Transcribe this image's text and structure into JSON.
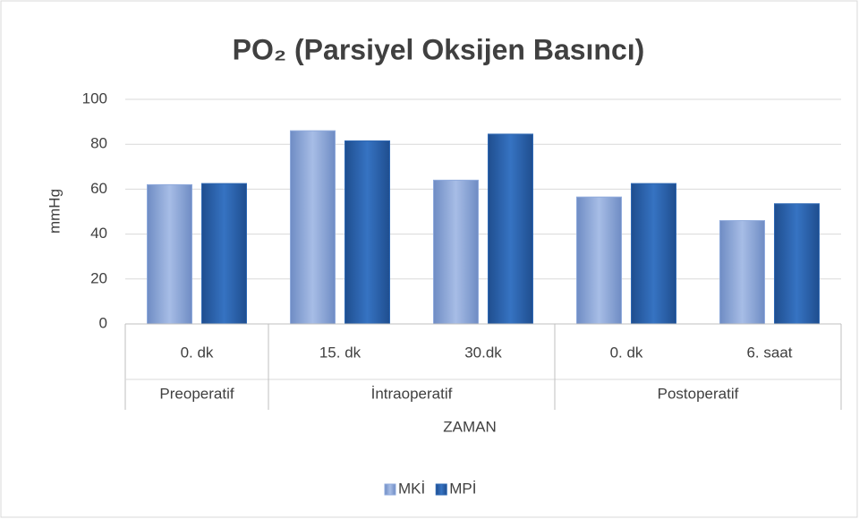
{
  "chart_data": {
    "type": "bar",
    "title": "PO₂ (Parsiyel Oksijen Basıncı)",
    "y_label": "mmHg",
    "x_label": "ZAMAN",
    "groups": [
      {
        "name": "Preoperatif",
        "categories": [
          "0. dk"
        ]
      },
      {
        "name": "İntraoperatif",
        "categories": [
          "15. dk",
          "30.dk"
        ]
      },
      {
        "name": "Postoperatif",
        "categories": [
          "0. dk",
          "6. saat"
        ]
      }
    ],
    "series": [
      {
        "name": "MKİ",
        "color": "#8faadc",
        "values": [
          62,
          86,
          64,
          56.5,
          46
        ]
      },
      {
        "name": "MPİ",
        "color": "#2e68b4",
        "values": [
          62.5,
          81.5,
          84.5,
          62.5,
          53.5
        ]
      }
    ],
    "ylim": [
      0,
      100
    ],
    "yticks": [
      0,
      20,
      40,
      60,
      80,
      100
    ],
    "grid": true,
    "legend": "bottom"
  }
}
